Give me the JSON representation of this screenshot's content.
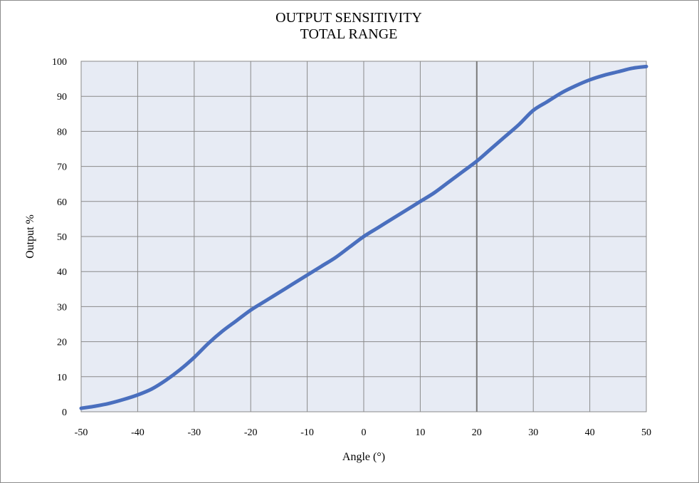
{
  "chart_data": {
    "type": "line",
    "title": "OUTPUT SENSITIVITY",
    "subtitle": "TOTAL RANGE",
    "xlabel": "Angle (°)",
    "ylabel": "Output %",
    "xlim": [
      -50,
      50
    ],
    "ylim": [
      0,
      100
    ],
    "x_ticks": [
      -50,
      -40,
      -30,
      -20,
      -10,
      0,
      10,
      20,
      30,
      40,
      50
    ],
    "y_ticks": [
      0,
      10,
      20,
      30,
      40,
      50,
      60,
      70,
      80,
      90,
      100
    ],
    "x_tick_labels": [
      "-50",
      "-40",
      "-30",
      "-20",
      "-10",
      "0",
      "10",
      "20",
      "30",
      "40",
      "50"
    ],
    "y_tick_labels": [
      "0",
      "10",
      "20",
      "30",
      "40",
      "50",
      "60",
      "70",
      "80",
      "90",
      "100"
    ],
    "grid": true,
    "highlight_x": 20,
    "series": [
      {
        "color": "#4a6fbe",
        "x": [
          -50,
          -47.5,
          -45,
          -42.5,
          -40,
          -37.5,
          -35,
          -32.5,
          -30,
          -27.5,
          -25,
          -22.5,
          -20,
          -17.5,
          -15,
          -12.5,
          -10,
          -7.5,
          -5,
          -2.5,
          0,
          2.5,
          5,
          7.5,
          10,
          12.5,
          15,
          17.5,
          20,
          22.5,
          25,
          27.5,
          30,
          32.5,
          35,
          37.5,
          40,
          42.5,
          45,
          47.5,
          50
        ],
        "y": [
          1,
          1.6,
          2.4,
          3.5,
          4.8,
          6.5,
          9,
          12,
          15.5,
          19.5,
          23,
          26,
          29,
          31.5,
          34,
          36.5,
          39,
          41.5,
          44,
          47,
          50,
          52.5,
          55,
          57.5,
          60,
          62.5,
          65.5,
          68.5,
          71.5,
          75,
          78.5,
          82,
          86,
          88.5,
          91,
          93,
          94.7,
          96,
          97,
          98,
          98.5
        ]
      }
    ]
  },
  "colors": {
    "plot_background": "#e7ebf4",
    "grid": "#8a8a8a",
    "highlight_line": "#7a7a7a",
    "series_line": "#4a6fbe"
  }
}
